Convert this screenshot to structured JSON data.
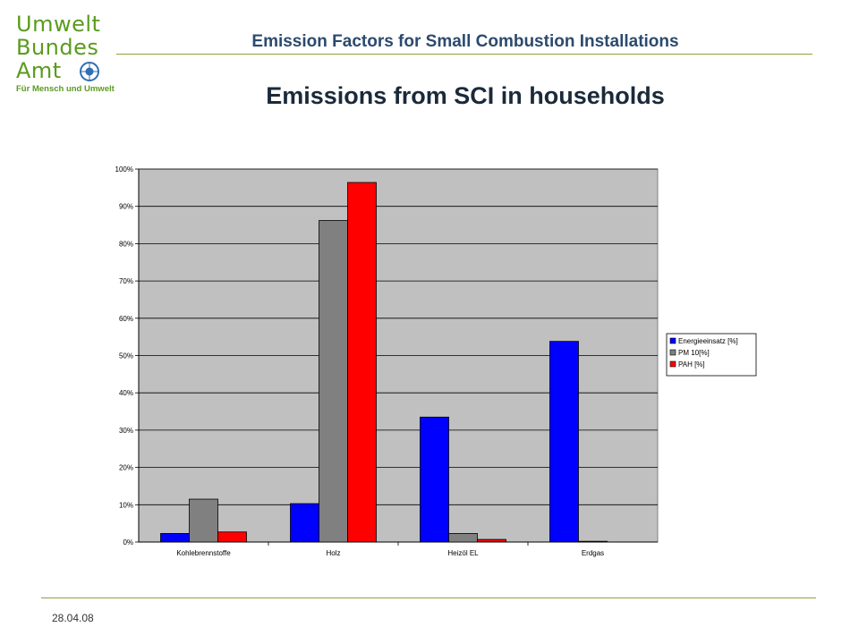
{
  "logo": {
    "line1": "Umwelt",
    "line2": "Bundes",
    "line3": "Amt",
    "tagline": "Für Mensch und Umwelt"
  },
  "header": {
    "title": "Emission Factors for Small Combustion Installations"
  },
  "main": {
    "title": "Emissions from SCI in households"
  },
  "footer": {
    "date": "28.04.08"
  },
  "colors": {
    "brand_green": "#5a9b1e",
    "rule": "#8da33a",
    "plot_bg": "#c0c0c0"
  },
  "chart_data": {
    "type": "bar",
    "categories": [
      "Kohlebrennstoffe",
      "Holz",
      "Heizöl EL",
      "Erdgas"
    ],
    "series": [
      {
        "name": "Energieeinsatz [%]",
        "color": "#0000ff",
        "values": [
          2.3,
          10.3,
          33.5,
          53.8
        ]
      },
      {
        "name": "PM 10[%]",
        "color": "#808080",
        "values": [
          11.5,
          86.2,
          2.3,
          0.2
        ]
      },
      {
        "name": "PAH [%]",
        "color": "#ff0000",
        "values": [
          2.7,
          96.4,
          0.7,
          0.0
        ]
      }
    ],
    "ylim": [
      0,
      100
    ],
    "yticks": [
      "0%",
      "10%",
      "20%",
      "30%",
      "40%",
      "50%",
      "60%",
      "70%",
      "80%",
      "90%",
      "100%"
    ],
    "grid": true,
    "legend": "right"
  }
}
